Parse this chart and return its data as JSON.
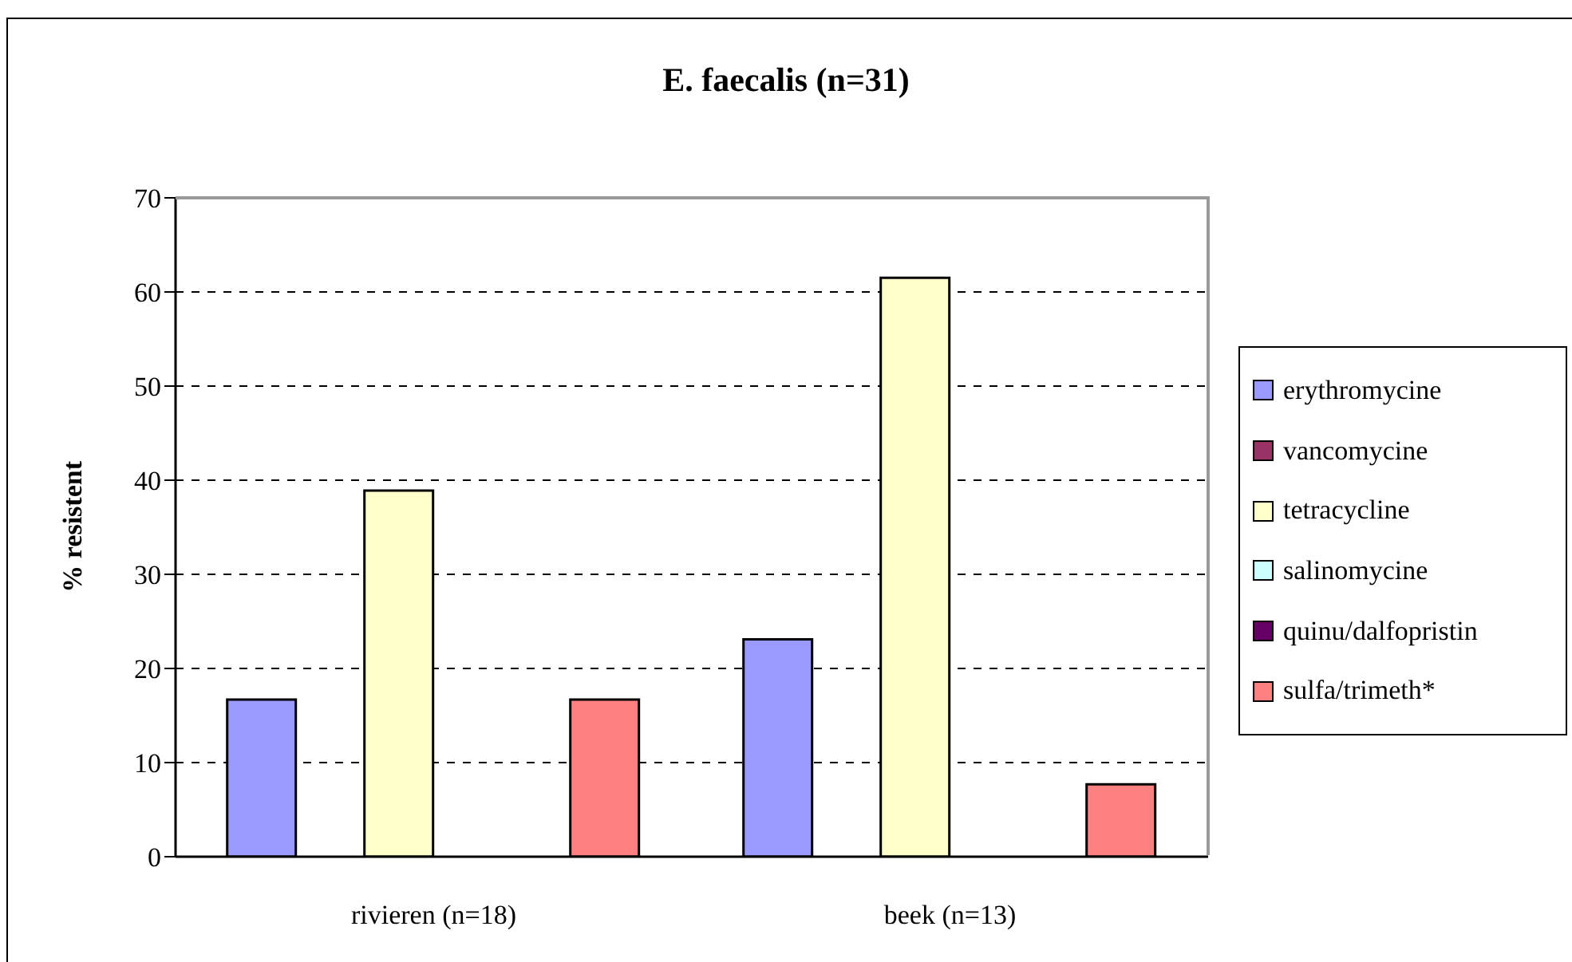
{
  "chart_data": {
    "type": "bar",
    "title": "E. faecalis (n=31)",
    "ylabel": "% resistent",
    "categories": [
      "rivieren (n=18)",
      "beek (n=13)"
    ],
    "series": [
      {
        "name": "erythromycine",
        "color": "#9999ff",
        "values": [
          16.7,
          23.1
        ]
      },
      {
        "name": "vancomycine",
        "color": "#993366",
        "values": [
          0,
          0
        ]
      },
      {
        "name": "tetracycline",
        "color": "#ffffcc",
        "values": [
          38.9,
          61.5
        ]
      },
      {
        "name": "salinomycine",
        "color": "#ccffff",
        "values": [
          0,
          0
        ]
      },
      {
        "name": "quinu/dalfopristin",
        "color": "#660066",
        "values": [
          0,
          0
        ]
      },
      {
        "name": "sulfa/trimeth*",
        "color": "#ff8080",
        "values": [
          16.7,
          7.7
        ]
      }
    ],
    "ylim": [
      0,
      70
    ],
    "yticks": [
      0,
      10,
      20,
      30,
      40,
      50,
      60,
      70
    ],
    "grid": "y",
    "legend": "right"
  }
}
